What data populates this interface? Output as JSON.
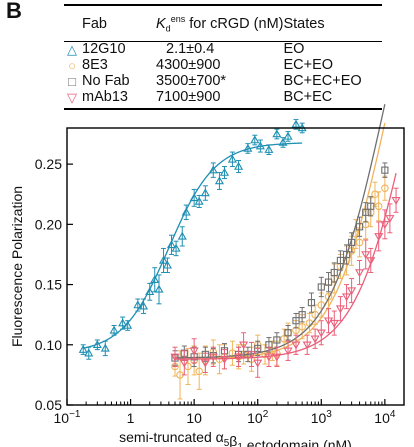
{
  "panel_label": "B",
  "legend_table": {
    "headers": {
      "fab": "Fab",
      "kd_prefix": "K",
      "kd_sub": "d",
      "kd_sup": "ens",
      "kd_suffix": " for cRGD (nM)",
      "states": "States"
    },
    "rows": [
      {
        "symbol": "△",
        "color": "#1f8fb3",
        "fab": "12G10",
        "kd": "2.1±0.4",
        "states": "EO"
      },
      {
        "symbol": "○",
        "color": "#f0b45a",
        "fab": "8E3",
        "kd": "4300±900",
        "states": "EC+EO"
      },
      {
        "symbol": "□",
        "color": "#707070",
        "fab": "No Fab",
        "kd": "3500±700*",
        "states": "BC+EC+EO"
      },
      {
        "symbol": "▽",
        "color": "#ea5f7a",
        "fab": "mAb13",
        "kd": "7100±900",
        "states": "BC+EC"
      }
    ]
  },
  "chart_data": {
    "type": "scatter",
    "xlabel": "semi-truncated α5β1 ectodomain (nM)",
    "ylabel": "Fluorescence Polarization",
    "xscale": "log",
    "xlim": [
      0.1,
      20000
    ],
    "ylim": [
      0.05,
      0.28
    ],
    "x_ticks": [
      0.1,
      1,
      10,
      100,
      1000,
      10000
    ],
    "x_tick_labels": [
      {
        "base": "10",
        "exp": "−1"
      },
      {
        "base": "1",
        "exp": ""
      },
      {
        "base": "10",
        "exp": ""
      },
      {
        "base": "10",
        "exp": "2"
      },
      {
        "base": "10",
        "exp": "3"
      },
      {
        "base": "10",
        "exp": "4"
      }
    ],
    "y_ticks": [
      0.05,
      0.1,
      0.15,
      0.2,
      0.25
    ],
    "y_tick_labels": [
      "0.05",
      "0.10",
      "0.15",
      "0.20",
      "0.25"
    ],
    "series": [
      {
        "name": "12G10",
        "color": "#1f8fb3",
        "marker": "triangle-up",
        "points": [
          [
            0.18,
            0.096
          ],
          [
            0.22,
            0.093
          ],
          [
            0.3,
            0.1
          ],
          [
            0.4,
            0.097
          ],
          [
            0.55,
            0.112
          ],
          [
            0.75,
            0.118
          ],
          [
            0.9,
            0.116
          ],
          [
            1.3,
            0.133
          ],
          [
            1.6,
            0.132
          ],
          [
            2.0,
            0.144
          ],
          [
            2.4,
            0.154
          ],
          [
            2.8,
            0.146
          ],
          [
            3.3,
            0.17
          ],
          [
            3.8,
            0.166
          ],
          [
            4.4,
            0.183
          ],
          [
            5.2,
            0.18
          ],
          [
            6.5,
            0.19
          ],
          [
            7.5,
            0.21
          ],
          [
            10,
            0.222
          ],
          [
            12,
            0.219
          ],
          [
            15,
            0.226
          ],
          [
            20,
            0.245
          ],
          [
            25,
            0.236
          ],
          [
            30,
            0.243
          ],
          [
            40,
            0.254
          ],
          [
            50,
            0.248
          ],
          [
            70,
            0.263
          ],
          [
            90,
            0.27
          ],
          [
            110,
            0.265
          ],
          [
            150,
            0.262
          ],
          [
            200,
            0.275
          ],
          [
            250,
            0.268
          ],
          [
            300,
            0.273
          ],
          [
            400,
            0.283
          ],
          [
            500,
            0.28
          ]
        ],
        "err": [
          0.004,
          0.005,
          0.004,
          0.006,
          0.004,
          0.005,
          0.004,
          0.005,
          0.006,
          0.007,
          0.01,
          0.012,
          0.01,
          0.006,
          0.008,
          0.006,
          0.008,
          0.006,
          0.007,
          0.005,
          0.006,
          0.006,
          0.007,
          0.005,
          0.006,
          0.005,
          0.004,
          0.004,
          0.005,
          0.004,
          0.004,
          0.004,
          0.004,
          0.004,
          0.004
        ],
        "fit": {
          "bottom": 0.093,
          "top": 0.268,
          "ec50": 4.0,
          "hill": 1.2
        }
      },
      {
        "name": "8E3",
        "color": "#f0b45a",
        "marker": "circle",
        "points": [
          [
            5,
            0.082
          ],
          [
            6,
            0.075
          ],
          [
            8,
            0.082
          ],
          [
            10,
            0.087
          ],
          [
            12,
            0.078
          ],
          [
            15,
            0.087
          ],
          [
            20,
            0.094
          ],
          [
            25,
            0.088
          ],
          [
            30,
            0.09
          ],
          [
            40,
            0.093
          ],
          [
            50,
            0.09
          ],
          [
            60,
            0.092
          ],
          [
            80,
            0.088
          ],
          [
            100,
            0.1
          ],
          [
            130,
            0.092
          ],
          [
            170,
            0.095
          ],
          [
            200,
            0.093
          ],
          [
            260,
            0.105
          ],
          [
            300,
            0.11
          ],
          [
            400,
            0.112
          ],
          [
            500,
            0.115
          ],
          [
            650,
            0.118
          ],
          [
            800,
            0.125
          ],
          [
            1000,
            0.133
          ],
          [
            1300,
            0.14
          ],
          [
            1600,
            0.155
          ],
          [
            2000,
            0.165
          ],
          [
            2500,
            0.17
          ],
          [
            3000,
            0.178
          ],
          [
            3500,
            0.192
          ],
          [
            4000,
            0.185
          ],
          [
            5000,
            0.2
          ],
          [
            6000,
            0.21
          ],
          [
            7000,
            0.225
          ],
          [
            8000,
            0.215
          ],
          [
            10000,
            0.23
          ]
        ],
        "err": [
          0.008,
          0.02,
          0.015,
          0.012,
          0.015,
          0.012,
          0.01,
          0.012,
          0.01,
          0.01,
          0.01,
          0.008,
          0.01,
          0.008,
          0.008,
          0.008,
          0.01,
          0.008,
          0.008,
          0.008,
          0.01,
          0.008,
          0.008,
          0.01,
          0.01,
          0.012,
          0.01,
          0.012,
          0.012,
          0.012,
          0.012,
          0.012,
          0.012,
          0.01,
          0.012,
          0.01
        ],
        "fit": {
          "bottom": 0.088,
          "top": 0.5,
          "ec50": 11000,
          "hill": 1.0
        }
      },
      {
        "name": "No Fab",
        "color": "#707070",
        "marker": "square",
        "points": [
          [
            5,
            0.089
          ],
          [
            7,
            0.093
          ],
          [
            10,
            0.09
          ],
          [
            15,
            0.092
          ],
          [
            20,
            0.091
          ],
          [
            30,
            0.095
          ],
          [
            50,
            0.092
          ],
          [
            70,
            0.092
          ],
          [
            100,
            0.097
          ],
          [
            150,
            0.1
          ],
          [
            200,
            0.104
          ],
          [
            300,
            0.11
          ],
          [
            400,
            0.12
          ],
          [
            500,
            0.125
          ],
          [
            700,
            0.135
          ],
          [
            1000,
            0.148
          ],
          [
            1300,
            0.152
          ],
          [
            1600,
            0.16
          ],
          [
            2000,
            0.17
          ],
          [
            2500,
            0.175
          ],
          [
            3000,
            0.185
          ],
          [
            4000,
            0.198
          ],
          [
            5000,
            0.21
          ],
          [
            6000,
            0.215
          ],
          [
            10000,
            0.245
          ]
        ],
        "err": [
          0.006,
          0.006,
          0.008,
          0.006,
          0.006,
          0.006,
          0.006,
          0.006,
          0.006,
          0.006,
          0.006,
          0.006,
          0.006,
          0.006,
          0.008,
          0.008,
          0.008,
          0.008,
          0.008,
          0.008,
          0.008,
          0.008,
          0.008,
          0.008,
          0.006
        ],
        "fit": {
          "bottom": 0.089,
          "top": 0.5,
          "ec50": 9500,
          "hill": 1.0
        }
      },
      {
        "name": "mAb13",
        "color": "#ea5f7a",
        "marker": "triangle-down",
        "points": [
          [
            5,
            0.09
          ],
          [
            7,
            0.085
          ],
          [
            10,
            0.095
          ],
          [
            15,
            0.085
          ],
          [
            20,
            0.09
          ],
          [
            30,
            0.088
          ],
          [
            50,
            0.09
          ],
          [
            60,
            0.1
          ],
          [
            80,
            0.092
          ],
          [
            100,
            0.085
          ],
          [
            150,
            0.09
          ],
          [
            200,
            0.09
          ],
          [
            300,
            0.095
          ],
          [
            400,
            0.1
          ],
          [
            600,
            0.1
          ],
          [
            800,
            0.105
          ],
          [
            1000,
            0.11
          ],
          [
            1300,
            0.12
          ],
          [
            1600,
            0.118
          ],
          [
            2000,
            0.13
          ],
          [
            2500,
            0.14
          ],
          [
            3000,
            0.145
          ],
          [
            4000,
            0.16
          ],
          [
            5000,
            0.175
          ],
          [
            6000,
            0.17
          ],
          [
            8000,
            0.19
          ],
          [
            10000,
            0.2
          ],
          [
            12000,
            0.205
          ],
          [
            15000,
            0.22
          ]
        ],
        "err": [
          0.008,
          0.01,
          0.01,
          0.008,
          0.008,
          0.008,
          0.008,
          0.01,
          0.01,
          0.012,
          0.008,
          0.008,
          0.008,
          0.008,
          0.008,
          0.008,
          0.01,
          0.01,
          0.01,
          0.01,
          0.01,
          0.01,
          0.01,
          0.012,
          0.01,
          0.012,
          0.012,
          0.012,
          0.01
        ],
        "fit": {
          "bottom": 0.088,
          "top": 0.5,
          "ec50": 25000,
          "hill": 1.0
        }
      }
    ]
  }
}
